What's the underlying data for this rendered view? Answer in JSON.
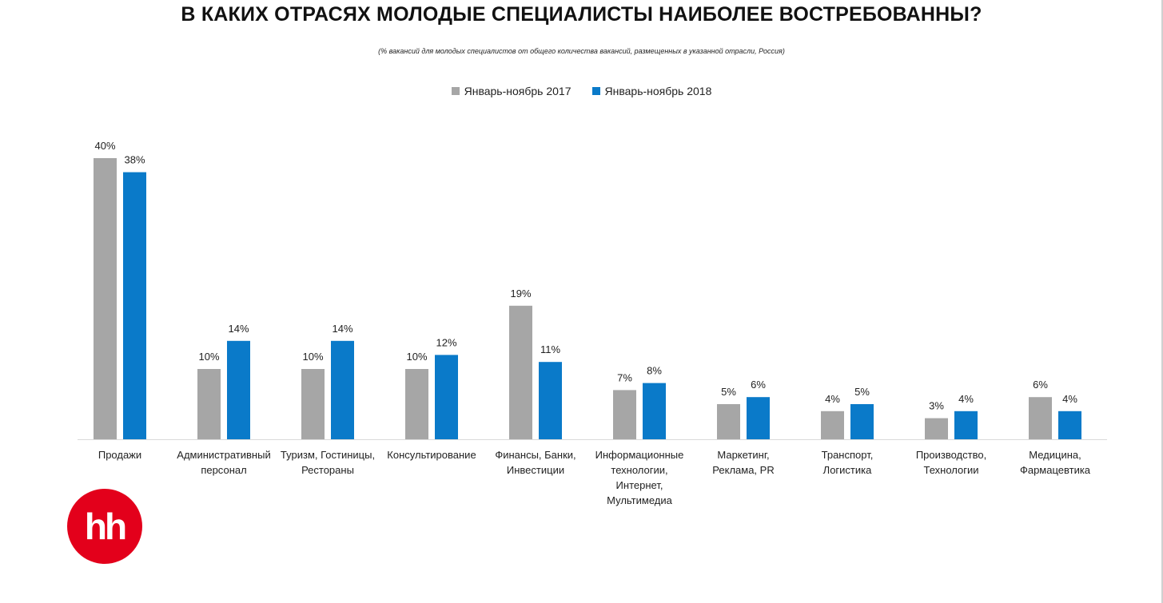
{
  "title": "В КАКИХ ОТРАСЯХ МОЛОДЫЕ СПЕЦИАЛИСТЫ НАИБОЛЕЕ ВОСТРЕБОВАННЫ?",
  "subtitle": "(% вакансий  для молодых специалистов от общего количества вакансий, размещенных в  указанной отрасли, Россия)",
  "logo_text": "hh",
  "colors": {
    "series_2017": "#a6a6a6",
    "series_2018": "#0a7ac9",
    "logo": "#e3001b"
  },
  "chart_data": {
    "type": "bar",
    "title": "В КАКИХ ОТРАСЯХ МОЛОДЫЕ СПЕЦИАЛИСТЫ НАИБОЛЕЕ ВОСТРЕБОВАННЫ?",
    "legend_position": "top-center",
    "grid": false,
    "ylim": [
      0,
      40
    ],
    "categories": [
      [
        "Продажи"
      ],
      [
        "Административный",
        "персонал"
      ],
      [
        "Туризм, Гостиницы,",
        "Рестораны"
      ],
      [
        "Консультирование"
      ],
      [
        "Финансы, Банки,",
        "Инвестиции"
      ],
      [
        "Информационные",
        "технологии,",
        "Интернет,",
        "Мультимедиа"
      ],
      [
        "Маркетинг,",
        "Реклама, PR"
      ],
      [
        "Транспорт,",
        "Логистика"
      ],
      [
        "Производство,",
        "Технологии"
      ],
      [
        "Медицина,",
        "Фармацевтика"
      ]
    ],
    "series": [
      {
        "name": "Январь-ноябрь 2017",
        "color": "#a6a6a6",
        "values": [
          40,
          10,
          10,
          10,
          19,
          7,
          5,
          4,
          3,
          6
        ],
        "labels": [
          "40%",
          "10%",
          "10%",
          "10%",
          "19%",
          "7%",
          "5%",
          "4%",
          "3%",
          "6%"
        ]
      },
      {
        "name": "Январь-ноябрь 2018",
        "color": "#0a7ac9",
        "values": [
          38,
          14,
          14,
          12,
          11,
          8,
          6,
          5,
          4,
          4
        ],
        "labels": [
          "38%",
          "14%",
          "14%",
          "12%",
          "11%",
          "8%",
          "6%",
          "5%",
          "4%",
          "4%"
        ]
      }
    ]
  }
}
